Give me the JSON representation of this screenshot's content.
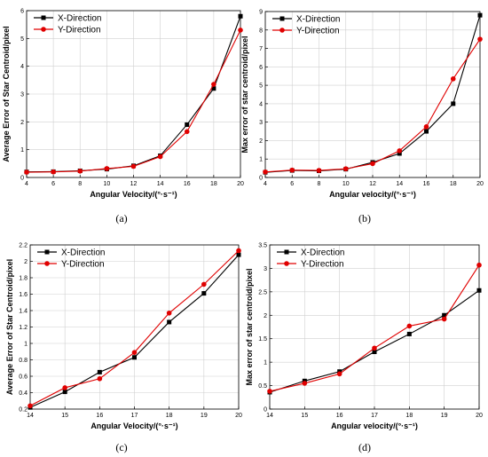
{
  "colors": {
    "x_direction": "#000000",
    "y_direction": "#e00000"
  },
  "chart_data": [
    {
      "type": "line",
      "caption": "(a)",
      "xlabel": "Angular Velocity/(°·s⁻¹)",
      "ylabel": "Average Error of Star Centroid/pixel",
      "xlim": [
        4,
        20
      ],
      "ylim": [
        0,
        6
      ],
      "xticks": [
        4,
        6,
        8,
        10,
        12,
        14,
        16,
        18,
        20
      ],
      "xtick_labels": [
        "4",
        "6",
        "8",
        "10",
        "12",
        "14",
        "16",
        "18",
        "20"
      ],
      "yticks": [
        0,
        1,
        2,
        3,
        4,
        5,
        6
      ],
      "ytick_labels": [
        "0",
        "1",
        "2",
        "3",
        "4",
        "5",
        "6"
      ],
      "legend": "top-left",
      "x": [
        4,
        6,
        8,
        10,
        12,
        14,
        16,
        18,
        20
      ],
      "series": [
        {
          "name": "X-Direction",
          "marker": "square",
          "values": [
            0.2,
            0.21,
            0.24,
            0.3,
            0.42,
            0.78,
            1.9,
            3.2,
            5.8
          ]
        },
        {
          "name": "Y-Direction",
          "marker": "circle",
          "values": [
            0.19,
            0.2,
            0.23,
            0.32,
            0.4,
            0.75,
            1.65,
            3.35,
            5.3
          ]
        }
      ]
    },
    {
      "type": "line",
      "caption": "(b)",
      "xlabel": "Angular velocity/(°·s⁻¹)",
      "ylabel": "Max error of star centroid/pixel",
      "xlim": [
        4,
        20
      ],
      "ylim": [
        0,
        9
      ],
      "xticks": [
        4,
        6,
        8,
        10,
        12,
        14,
        16,
        18,
        20
      ],
      "xtick_labels": [
        "4",
        "6",
        "8",
        "10",
        "12",
        "14",
        "16",
        "18",
        "20"
      ],
      "yticks": [
        0,
        1,
        2,
        3,
        4,
        5,
        6,
        7,
        8,
        9
      ],
      "ytick_labels": [
        "0",
        "1",
        "2",
        "3",
        "4",
        "5",
        "6",
        "7",
        "8",
        "9"
      ],
      "legend": "top-left",
      "x": [
        4,
        6,
        8,
        10,
        12,
        14,
        16,
        18,
        20
      ],
      "series": [
        {
          "name": "X-Direction",
          "marker": "square",
          "values": [
            0.28,
            0.38,
            0.36,
            0.45,
            0.82,
            1.3,
            2.5,
            4.0,
            8.8
          ]
        },
        {
          "name": "Y-Direction",
          "marker": "circle",
          "values": [
            0.3,
            0.4,
            0.38,
            0.47,
            0.75,
            1.45,
            2.75,
            5.35,
            7.5
          ]
        }
      ]
    },
    {
      "type": "line",
      "caption": "(c)",
      "xlabel": "Angular Velocity/(°·s⁻¹)",
      "ylabel": "Average Error of Star Centroid/pixel",
      "xlim": [
        14,
        20
      ],
      "ylim": [
        0.2,
        2.2
      ],
      "xticks": [
        14,
        15,
        16,
        17,
        18,
        19,
        20
      ],
      "xtick_labels": [
        "14",
        "15",
        "16",
        "17",
        "18",
        "19",
        "20"
      ],
      "yticks": [
        0.2,
        0.4,
        0.6,
        0.8,
        1.0,
        1.2,
        1.4,
        1.6,
        1.8,
        2.0,
        2.2
      ],
      "ytick_labels": [
        "0.2",
        "0.4",
        "0.6",
        "0.8",
        "1",
        "1.2",
        "1.4",
        "1.6",
        "1.8",
        "2",
        "2.2"
      ],
      "legend": "top-left",
      "x": [
        14,
        15,
        16,
        17,
        18,
        19,
        20
      ],
      "series": [
        {
          "name": "X-Direction",
          "marker": "square",
          "values": [
            0.22,
            0.41,
            0.65,
            0.83,
            1.26,
            1.61,
            2.08
          ]
        },
        {
          "name": "Y-Direction",
          "marker": "circle",
          "values": [
            0.24,
            0.46,
            0.57,
            0.89,
            1.37,
            1.72,
            2.13
          ]
        }
      ]
    },
    {
      "type": "line",
      "caption": "(d)",
      "xlabel": "Angular velocity/(°·s⁻¹)",
      "ylabel": "Max error of star centroid/pixel",
      "xlim": [
        14,
        20
      ],
      "ylim": [
        0,
        3.5
      ],
      "xticks": [
        14,
        15,
        16,
        17,
        18,
        19,
        20
      ],
      "xtick_labels": [
        "14",
        "15",
        "16",
        "17",
        "18",
        "19",
        "20"
      ],
      "yticks": [
        0,
        0.5,
        1,
        1.5,
        2,
        2.5,
        3,
        3.5
      ],
      "ytick_labels": [
        "0",
        "0.5",
        "1",
        "1.5",
        "2",
        "2.5",
        "3",
        "3.5"
      ],
      "legend": "top-left",
      "x": [
        14,
        15,
        16,
        17,
        18,
        19,
        20
      ],
      "series": [
        {
          "name": "X-Direction",
          "marker": "square",
          "values": [
            0.36,
            0.6,
            0.8,
            1.22,
            1.6,
            2.0,
            2.53
          ]
        },
        {
          "name": "Y-Direction",
          "marker": "circle",
          "values": [
            0.38,
            0.55,
            0.75,
            1.3,
            1.77,
            1.92,
            3.07
          ]
        }
      ]
    }
  ]
}
